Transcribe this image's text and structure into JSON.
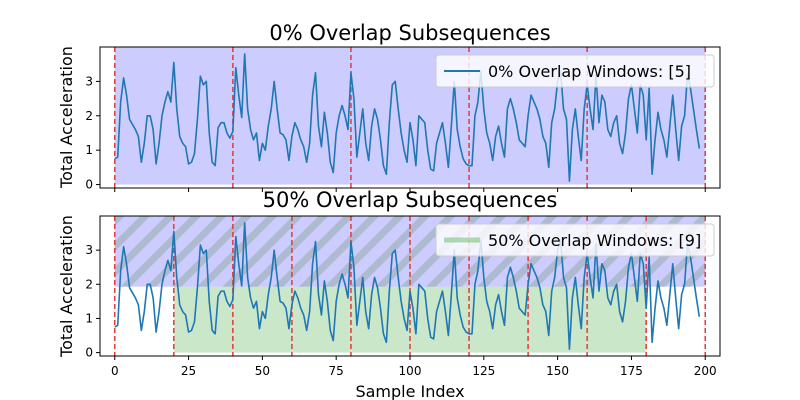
{
  "chart_data": [
    {
      "type": "line",
      "title": "0% Overlap Subsequences",
      "xlabel": "",
      "ylabel": "Total Acceleration",
      "xlim": [
        -5,
        205
      ],
      "ylim": [
        -0.1,
        4.0
      ],
      "yticks": [
        0,
        1,
        2,
        3
      ],
      "xticks": [
        0,
        25,
        50,
        75,
        100,
        125,
        150,
        175,
        200
      ],
      "show_xtick_labels": false,
      "legend": {
        "label": "0% Overlap Windows: [5]",
        "position": "upper right",
        "color": "#1f77b4"
      },
      "windows": [
        {
          "start": 0,
          "end": 40,
          "ymin": 0,
          "ymax": 4.0,
          "color": "#0000ff",
          "opacity": 0.2,
          "hatch": false
        },
        {
          "start": 40,
          "end": 80,
          "ymin": 0,
          "ymax": 4.0,
          "color": "#0000ff",
          "opacity": 0.2,
          "hatch": false
        },
        {
          "start": 80,
          "end": 120,
          "ymin": 0,
          "ymax": 4.0,
          "color": "#0000ff",
          "opacity": 0.2,
          "hatch": false
        },
        {
          "start": 120,
          "end": 160,
          "ymin": 0,
          "ymax": 4.0,
          "color": "#0000ff",
          "opacity": 0.2,
          "hatch": false
        },
        {
          "start": 160,
          "end": 200,
          "ymin": 0,
          "ymax": 4.0,
          "color": "#0000ff",
          "opacity": 0.2,
          "hatch": false
        }
      ],
      "vlines": [
        0,
        40,
        80,
        120,
        160,
        200
      ],
      "vline_color": "#e03c3c"
    },
    {
      "type": "line",
      "title": "50% Overlap Subsequences",
      "xlabel": "Sample Index",
      "ylabel": "Total Acceleration",
      "xlim": [
        -5,
        205
      ],
      "ylim": [
        -0.1,
        4.0
      ],
      "yticks": [
        0,
        1,
        2,
        3
      ],
      "xticks": [
        0,
        25,
        50,
        75,
        100,
        125,
        150,
        175,
        200
      ],
      "show_xtick_labels": true,
      "legend": {
        "label": "50% Overlap Windows: [9]",
        "position": "upper right",
        "color": "#2ca02c"
      },
      "windows": [
        {
          "start": 0,
          "end": 40,
          "ymin": 1.93,
          "ymax": 4.0,
          "color": "#0000ff",
          "opacity": 0.2,
          "hatch": true
        },
        {
          "start": 40,
          "end": 80,
          "ymin": 1.93,
          "ymax": 4.0,
          "color": "#0000ff",
          "opacity": 0.2,
          "hatch": true
        },
        {
          "start": 80,
          "end": 120,
          "ymin": 1.93,
          "ymax": 4.0,
          "color": "#0000ff",
          "opacity": 0.2,
          "hatch": true
        },
        {
          "start": 120,
          "end": 160,
          "ymin": 1.93,
          "ymax": 4.0,
          "color": "#0000ff",
          "opacity": 0.2,
          "hatch": true
        },
        {
          "start": 160,
          "end": 200,
          "ymin": 1.93,
          "ymax": 4.0,
          "color": "#0000ff",
          "opacity": 0.2,
          "hatch": true
        },
        {
          "start": 20,
          "end": 60,
          "ymin": 0,
          "ymax": 1.93,
          "color": "#2ca02c",
          "opacity": 0.25,
          "hatch": false
        },
        {
          "start": 60,
          "end": 100,
          "ymin": 0,
          "ymax": 1.93,
          "color": "#2ca02c",
          "opacity": 0.25,
          "hatch": false
        },
        {
          "start": 100,
          "end": 140,
          "ymin": 0,
          "ymax": 1.93,
          "color": "#2ca02c",
          "opacity": 0.25,
          "hatch": false
        },
        {
          "start": 140,
          "end": 180,
          "ymin": 0,
          "ymax": 1.93,
          "color": "#2ca02c",
          "opacity": 0.25,
          "hatch": false
        }
      ],
      "vlines": [
        0,
        40,
        80,
        120,
        160,
        200,
        20,
        60,
        100,
        140,
        180
      ],
      "vline_color": "#e03c3c"
    }
  ],
  "series": {
    "color": "#1f77b4",
    "x_start": 0,
    "x_step": 1,
    "y": [
      0.75,
      0.8,
      2.4,
      3.1,
      2.6,
      1.9,
      1.75,
      1.6,
      1.4,
      0.65,
      1.2,
      2.0,
      2.0,
      1.6,
      0.6,
      1.2,
      2.0,
      2.4,
      2.7,
      2.4,
      3.55,
      2.2,
      1.4,
      1.2,
      1.1,
      0.6,
      0.65,
      0.9,
      1.9,
      3.15,
      2.9,
      3.0,
      1.5,
      0.65,
      0.55,
      1.65,
      1.8,
      1.8,
      1.5,
      1.35,
      1.55,
      3.4,
      2.6,
      1.95,
      3.8,
      2.2,
      1.6,
      1.3,
      1.5,
      0.7,
      1.2,
      1.0,
      1.7,
      2.2,
      3.0,
      2.2,
      1.5,
      1.45,
      1.3,
      0.7,
      1.4,
      1.8,
      1.6,
      1.3,
      1.1,
      0.65,
      1.2,
      2.6,
      3.25,
      1.7,
      1.1,
      2.1,
      1.5,
      0.65,
      0.35,
      1.5,
      2.0,
      2.3,
      2.0,
      1.6,
      3.25,
      2.5,
      0.8,
      1.5,
      2.2,
      1.2,
      0.7,
      1.7,
      2.2,
      1.9,
      1.3,
      0.55,
      0.3,
      1.8,
      2.9,
      3.0,
      2.2,
      1.5,
      1.0,
      0.65,
      1.8,
      1.3,
      0.55,
      2.0,
      1.9,
      1.8,
      1.0,
      0.45,
      0.4,
      1.2,
      1.5,
      1.8,
      1.2,
      0.5,
      1.7,
      3.0,
      1.6,
      1.1,
      0.75,
      0.6,
      0.55,
      0.55,
      2.0,
      2.4,
      3.3,
      2.2,
      1.5,
      1.2,
      0.7,
      1.4,
      1.7,
      1.2,
      0.8,
      2.2,
      2.5,
      2.2,
      1.8,
      1.3,
      1.2,
      1.1,
      2.0,
      2.6,
      2.4,
      2.2,
      1.9,
      1.4,
      1.2,
      0.5,
      1.8,
      2.2,
      3.0,
      3.3,
      2.2,
      1.9,
      0.1,
      1.6,
      2.2,
      1.4,
      0.7,
      2.2,
      2.9,
      2.2,
      1.6,
      3.2,
      1.8,
      2.6,
      2.4,
      1.6,
      1.4,
      1.8,
      2.0,
      1.2,
      0.9,
      1.5,
      2.5,
      2.9,
      2.2,
      1.5,
      2.9,
      2.6,
      1.3,
      2.8,
      0.3,
      1.3,
      2.1,
      1.6,
      1.3,
      0.8,
      1.7,
      2.6,
      1.6,
      0.7,
      1.7,
      2.0,
      3.2,
      2.8,
      2.2,
      1.6,
      1.05
    ]
  }
}
